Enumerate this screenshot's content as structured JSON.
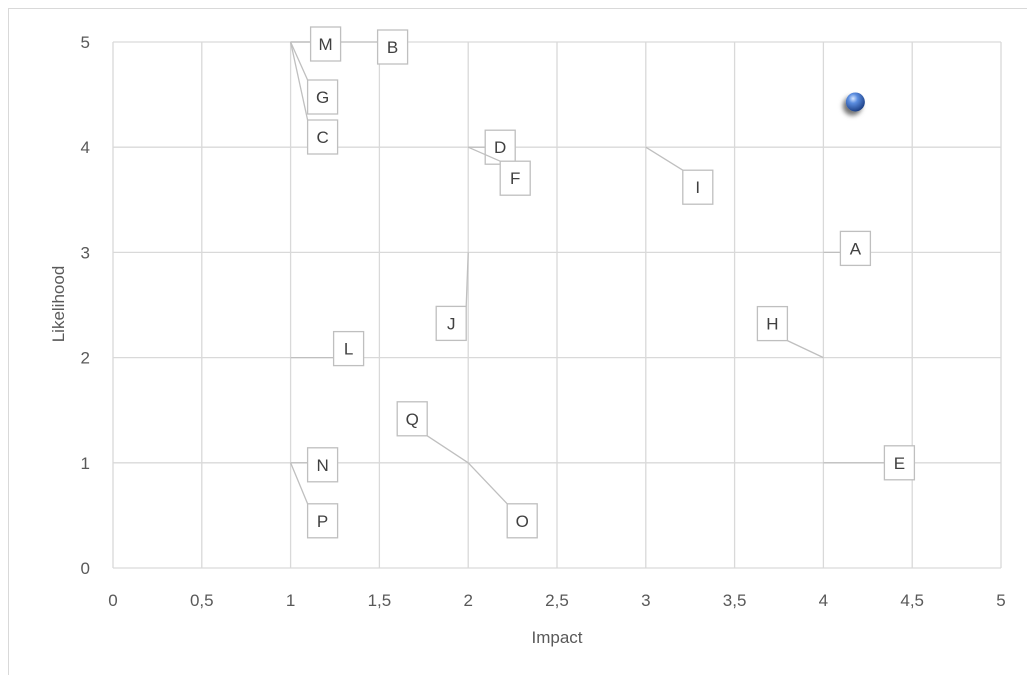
{
  "chart_data": {
    "type": "scatter",
    "title": "",
    "xlabel": "Impact",
    "ylabel": "Likelihood",
    "xlim": [
      0,
      5
    ],
    "ylim": [
      0,
      5
    ],
    "x_ticks": [
      "0",
      "0,5",
      "1",
      "1,5",
      "2",
      "2,5",
      "3",
      "3,5",
      "4",
      "4,5",
      "5"
    ],
    "y_ticks": [
      "0",
      "1",
      "2",
      "3",
      "4",
      "5"
    ],
    "grid": true,
    "legend": "none",
    "marker_color": "#2e5fa8",
    "points": [
      {
        "label": "A",
        "x": 4,
        "y": 3
      },
      {
        "label": "B",
        "x": 1,
        "y": 5
      },
      {
        "label": "C",
        "x": 1,
        "y": 5
      },
      {
        "label": "D",
        "x": 2,
        "y": 4
      },
      {
        "label": "E",
        "x": 4,
        "y": 1
      },
      {
        "label": "F",
        "x": 2,
        "y": 4
      },
      {
        "label": "G",
        "x": 1,
        "y": 5
      },
      {
        "label": "H",
        "x": 4,
        "y": 2
      },
      {
        "label": "I",
        "x": 3,
        "y": 4
      },
      {
        "label": "J",
        "x": 2,
        "y": 3
      },
      {
        "label": "L",
        "x": 1,
        "y": 2
      },
      {
        "label": "M",
        "x": 1,
        "y": 5
      },
      {
        "label": "N",
        "x": 1,
        "y": 1
      },
      {
        "label": "O",
        "x": 2,
        "y": 1
      },
      {
        "label": "P",
        "x": 1,
        "y": 1
      },
      {
        "label": "Q",
        "x": 2,
        "y": 1
      }
    ],
    "highlight_point": {
      "x": 4.18,
      "y": 4.43
    }
  }
}
